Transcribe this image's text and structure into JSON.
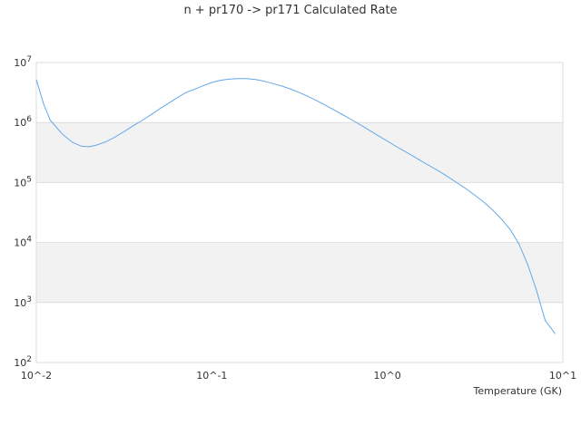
{
  "chart_data": {
    "type": "line",
    "title": "n + pr170 -> pr171 Calculated Rate",
    "xlabel": "Temperature (GK)",
    "ylabel": "",
    "x_scale": "log",
    "y_scale": "log",
    "xlim": [
      0.01,
      10
    ],
    "ylim": [
      100,
      10000000
    ],
    "grid": "alternating horizontal bands",
    "legend": "none",
    "line_color": "#64a8e8",
    "band_color": "#f2f2f2",
    "x_tick_labels": [
      "10^-2",
      "10^-1",
      "10^0",
      "10^1"
    ],
    "y_tick_labels": [
      {
        "base": "10",
        "exp": "2"
      },
      {
        "base": "10",
        "exp": "3"
      },
      {
        "base": "10",
        "exp": "4"
      },
      {
        "base": "10",
        "exp": "5"
      },
      {
        "base": "10",
        "exp": "6"
      },
      {
        "base": "10",
        "exp": "7"
      }
    ],
    "series": [
      {
        "x": [
          0.01,
          0.011,
          0.012,
          0.014,
          0.016,
          0.018,
          0.02,
          0.022,
          0.025,
          0.028,
          0.032,
          0.036,
          0.04,
          0.045,
          0.05,
          0.056,
          0.063,
          0.071,
          0.08,
          0.09,
          0.1,
          0.112,
          0.126,
          0.141,
          0.158,
          0.178,
          0.2,
          0.224,
          0.251,
          0.282,
          0.316,
          0.355,
          0.398,
          0.447,
          0.501,
          0.562,
          0.631,
          0.708,
          0.794,
          0.891,
          1.0,
          1.12,
          1.26,
          1.41,
          1.58,
          1.78,
          2.0,
          2.24,
          2.51,
          2.82,
          3.16,
          3.55,
          3.98,
          4.47,
          5.01,
          5.62,
          6.31,
          7.08,
          7.94,
          8.91,
          9.0
        ],
        "values": [
          5200000,
          2050000,
          1100000,
          650000,
          470000,
          405000,
          395000,
          420000,
          480000,
          570000,
          720000,
          900000,
          1080000,
          1350000,
          1660000,
          2050000,
          2550000,
          3150000,
          3600000,
          4150000,
          4650000,
          5050000,
          5300000,
          5380000,
          5380000,
          5200000,
          4850000,
          4450000,
          4050000,
          3600000,
          3150000,
          2700000,
          2300000,
          1920000,
          1600000,
          1330000,
          1100000,
          900000,
          735000,
          600000,
          490000,
          400000,
          330000,
          272000,
          223000,
          183000,
          150000,
          122000,
          98000,
          78000,
          61000,
          47000,
          35000,
          24500,
          16500,
          9500,
          4300,
          1600,
          500,
          320,
          300
        ]
      }
    ]
  }
}
